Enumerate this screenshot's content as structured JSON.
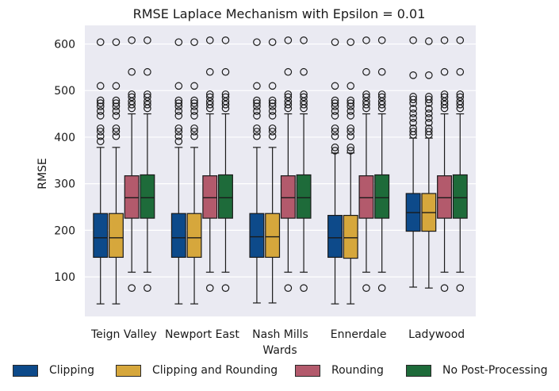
{
  "chart_data": {
    "type": "box",
    "title": "RMSE Laplace Mechanism with Epsilon = 0.01",
    "xlabel": "Wards",
    "ylabel": "RMSE",
    "ylim": [
      15,
      640
    ],
    "yticks": [
      100,
      200,
      300,
      400,
      500,
      600
    ],
    "categories": [
      "Teign Valley",
      "Newport East",
      "Nash Mills",
      "Ennerdale",
      "Ladywood"
    ],
    "grid": true,
    "legend_position": "bottom",
    "series": [
      {
        "name": "Clipping",
        "color": "#0d4a8a",
        "boxes": [
          {
            "whisker_low": 42,
            "q1": 142,
            "median": 184,
            "q3": 236,
            "whisker_high": 378,
            "outliers": [
              391,
              402,
              412,
              419,
              446,
              456,
              466,
              473,
              479,
              510,
              604
            ]
          },
          {
            "whisker_low": 42,
            "q1": 142,
            "median": 184,
            "q3": 236,
            "whisker_high": 378,
            "outliers": [
              391,
              402,
              412,
              419,
              446,
              456,
              466,
              473,
              479,
              510,
              604
            ]
          },
          {
            "whisker_low": 44,
            "q1": 142,
            "median": 186,
            "q3": 236,
            "whisker_high": 378,
            "outliers": [
              402,
              412,
              419,
              446,
              456,
              466,
              473,
              479,
              510,
              604
            ]
          },
          {
            "whisker_low": 42,
            "q1": 142,
            "median": 184,
            "q3": 232,
            "whisker_high": 366,
            "outliers": [
              371,
              378,
              402,
              412,
              419,
              446,
              456,
              466,
              473,
              479,
              510,
              604
            ]
          },
          {
            "whisker_low": 78,
            "q1": 198,
            "median": 238,
            "q3": 279,
            "whisker_high": 398,
            "outliers": [
              405,
              412,
              419,
              431,
              441,
              451,
              461,
              473,
              481,
              487,
              533,
              608
            ]
          }
        ]
      },
      {
        "name": "Clipping and Rounding",
        "color": "#d6a73c",
        "boxes": [
          {
            "whisker_low": 42,
            "q1": 142,
            "median": 184,
            "q3": 236,
            "whisker_high": 378,
            "outliers": [
              402,
              412,
              419,
              446,
              456,
              466,
              473,
              479,
              510,
              604
            ]
          },
          {
            "whisker_low": 42,
            "q1": 142,
            "median": 184,
            "q3": 236,
            "whisker_high": 378,
            "outliers": [
              402,
              412,
              419,
              446,
              456,
              466,
              473,
              479,
              510,
              604
            ]
          },
          {
            "whisker_low": 44,
            "q1": 142,
            "median": 186,
            "q3": 236,
            "whisker_high": 378,
            "outliers": [
              402,
              412,
              419,
              446,
              456,
              466,
              473,
              479,
              510,
              604
            ]
          },
          {
            "whisker_low": 42,
            "q1": 140,
            "median": 184,
            "q3": 232,
            "whisker_high": 366,
            "outliers": [
              371,
              378,
              402,
              412,
              419,
              446,
              456,
              466,
              473,
              479,
              510,
              604
            ]
          },
          {
            "whisker_low": 76,
            "q1": 198,
            "median": 238,
            "q3": 279,
            "whisker_high": 398,
            "outliers": [
              405,
              412,
              419,
              431,
              441,
              451,
              461,
              473,
              481,
              487,
              533,
              606
            ]
          }
        ]
      },
      {
        "name": "Rounding",
        "color": "#b35a6c",
        "boxes": [
          {
            "whisker_low": 110,
            "q1": 226,
            "median": 270,
            "q3": 317,
            "whisker_high": 450,
            "outliers": [
              76,
              462,
              470,
              477,
              486,
              492,
              540,
              608
            ]
          },
          {
            "whisker_low": 110,
            "q1": 226,
            "median": 270,
            "q3": 317,
            "whisker_high": 450,
            "outliers": [
              76,
              462,
              470,
              477,
              486,
              492,
              540,
              608
            ]
          },
          {
            "whisker_low": 110,
            "q1": 226,
            "median": 270,
            "q3": 317,
            "whisker_high": 450,
            "outliers": [
              76,
              462,
              470,
              477,
              486,
              492,
              540,
              608
            ]
          },
          {
            "whisker_low": 110,
            "q1": 226,
            "median": 270,
            "q3": 317,
            "whisker_high": 450,
            "outliers": [
              76,
              462,
              470,
              477,
              486,
              492,
              540,
              608
            ]
          },
          {
            "whisker_low": 110,
            "q1": 226,
            "median": 270,
            "q3": 317,
            "whisker_high": 450,
            "outliers": [
              76,
              462,
              470,
              477,
              486,
              492,
              540,
              608
            ]
          }
        ]
      },
      {
        "name": "No Post-Processing",
        "color": "#1e6b3a",
        "boxes": [
          {
            "whisker_low": 110,
            "q1": 226,
            "median": 270,
            "q3": 319,
            "whisker_high": 450,
            "outliers": [
              76,
              462,
              470,
              477,
              486,
              492,
              540,
              608
            ]
          },
          {
            "whisker_low": 110,
            "q1": 226,
            "median": 270,
            "q3": 319,
            "whisker_high": 450,
            "outliers": [
              76,
              462,
              470,
              477,
              486,
              492,
              540,
              608
            ]
          },
          {
            "whisker_low": 110,
            "q1": 226,
            "median": 270,
            "q3": 319,
            "whisker_high": 450,
            "outliers": [
              76,
              462,
              470,
              477,
              486,
              492,
              540,
              608
            ]
          },
          {
            "whisker_low": 110,
            "q1": 226,
            "median": 270,
            "q3": 319,
            "whisker_high": 450,
            "outliers": [
              76,
              462,
              470,
              477,
              486,
              492,
              540,
              608
            ]
          },
          {
            "whisker_low": 110,
            "q1": 226,
            "median": 270,
            "q3": 319,
            "whisker_high": 450,
            "outliers": [
              76,
              462,
              470,
              477,
              486,
              492,
              540,
              608
            ]
          }
        ]
      }
    ]
  },
  "style": {
    "plot_background": "#eaeaf2",
    "grid_color": "#ffffff",
    "line_color": "#1a1a1a"
  }
}
